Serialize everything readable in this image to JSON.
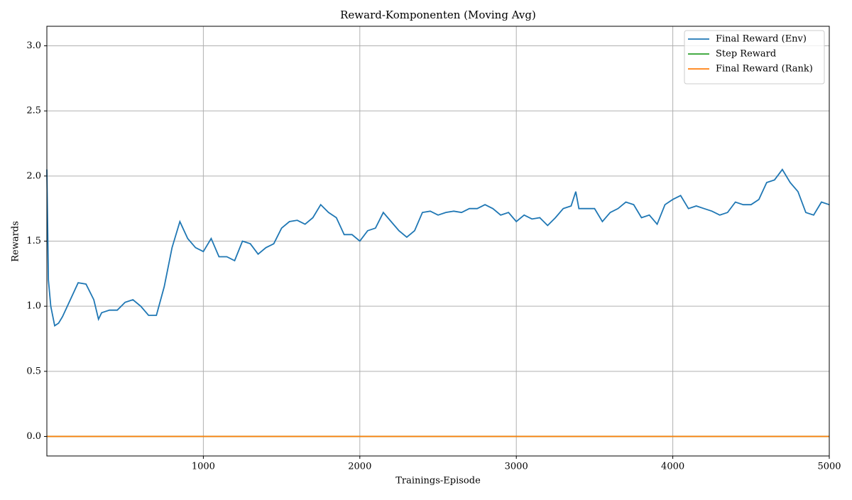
{
  "chart_data": {
    "type": "line",
    "title": "Reward-Komponenten (Moving Avg)",
    "x_label": "Trainings-Episode",
    "y_label": "Rewards",
    "xlim": [
      0,
      5000
    ],
    "xticks": [
      1000,
      2000,
      3000,
      4000,
      5000
    ],
    "ylim": [
      -0.15,
      3.15
    ],
    "yticks": [
      {
        "value": 0,
        "label": "0.0"
      },
      0.5,
      {
        "value": 1,
        "label": "1.0"
      },
      1.5,
      {
        "value": 2,
        "label": "2.0"
      },
      2.5,
      {
        "value": 3,
        "label": "3.0"
      }
    ],
    "grid": true,
    "legend": "upper right",
    "series": [
      {
        "name": "Final Reward (Env)",
        "color": "#1f77b4",
        "x": [
          0,
          10,
          25,
          50,
          75,
          100,
          150,
          200,
          250,
          300,
          330,
          350,
          400,
          450,
          500,
          550,
          600,
          650,
          700,
          750,
          800,
          850,
          900,
          950,
          1000,
          1050,
          1100,
          1150,
          1200,
          1250,
          1300,
          1350,
          1400,
          1450,
          1500,
          1550,
          1600,
          1650,
          1700,
          1750,
          1800,
          1850,
          1900,
          1950,
          2000,
          2050,
          2100,
          2150,
          2200,
          2250,
          2300,
          2350,
          2400,
          2450,
          2500,
          2550,
          2600,
          2650,
          2700,
          2750,
          2800,
          2850,
          2900,
          2950,
          3000,
          3050,
          3100,
          3150,
          3200,
          3250,
          3300,
          3350,
          3380,
          3400,
          3450,
          3500,
          3550,
          3600,
          3650,
          3700,
          3750,
          3800,
          3850,
          3900,
          3950,
          4000,
          4050,
          4100,
          4150,
          4200,
          4250,
          4300,
          4350,
          4400,
          4450,
          4500,
          4550,
          4600,
          4650,
          4700,
          4750,
          4800,
          4850,
          4900,
          4950,
          5000
        ],
        "values": [
          2.05,
          1.2,
          1.0,
          0.85,
          0.87,
          0.92,
          1.05,
          1.18,
          1.17,
          1.05,
          0.9,
          0.95,
          0.97,
          0.97,
          1.03,
          1.05,
          1.0,
          0.93,
          0.93,
          1.15,
          1.45,
          1.65,
          1.52,
          1.45,
          1.42,
          1.52,
          1.38,
          1.38,
          1.35,
          1.5,
          1.48,
          1.4,
          1.45,
          1.48,
          1.6,
          1.65,
          1.66,
          1.63,
          1.68,
          1.78,
          1.72,
          1.68,
          1.55,
          1.55,
          1.5,
          1.58,
          1.6,
          1.72,
          1.65,
          1.58,
          1.53,
          1.58,
          1.72,
          1.73,
          1.7,
          1.72,
          1.73,
          1.72,
          1.75,
          1.75,
          1.78,
          1.75,
          1.7,
          1.72,
          1.65,
          1.7,
          1.67,
          1.68,
          1.62,
          1.68,
          1.75,
          1.77,
          1.88,
          1.75,
          1.75,
          1.75,
          1.65,
          1.72,
          1.75,
          1.8,
          1.78,
          1.68,
          1.7,
          1.63,
          1.78,
          1.82,
          1.85,
          1.75,
          1.77,
          1.75,
          1.73,
          1.7,
          1.72,
          1.8,
          1.78,
          1.78,
          1.82,
          1.95,
          1.97,
          2.05,
          1.95,
          1.88,
          1.72,
          1.7,
          1.8,
          1.78
        ]
      },
      {
        "name": "Step Reward",
        "color": "#2ca02c",
        "x": [
          0,
          5000
        ],
        "values": [
          0,
          0
        ]
      },
      {
        "name": "Final Reward (Rank)",
        "color": "#ff7f0e",
        "x": [
          0,
          5000
        ],
        "values": [
          0,
          0
        ]
      }
    ]
  }
}
